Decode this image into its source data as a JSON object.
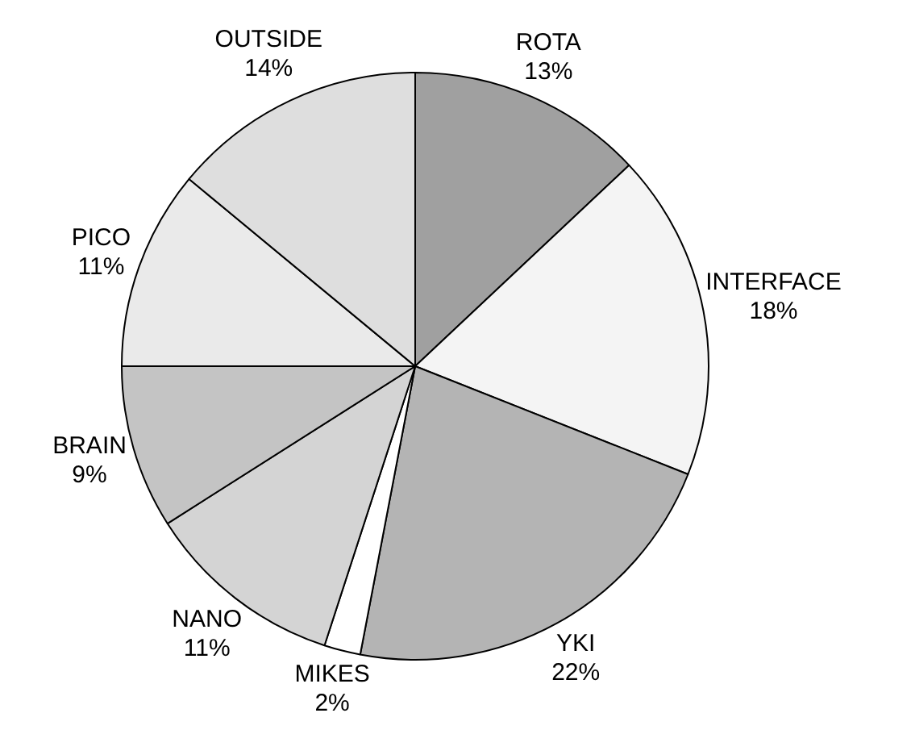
{
  "chart_data": {
    "type": "pie",
    "categories": [
      "ROTA",
      "INTERFACE",
      "YKI",
      "MIKES",
      "NANO",
      "BRAIN",
      "PICO",
      "OUTSIDE"
    ],
    "values": [
      13,
      18,
      22,
      2,
      11,
      9,
      11,
      14
    ],
    "value_labels": [
      "13%",
      "18%",
      "22%",
      "2%",
      "11%",
      "9%",
      "11%",
      "14%"
    ],
    "colors": [
      "#a0a0a0",
      "#f4f4f4",
      "#b4b4b4",
      "#ffffff",
      "#d4d4d4",
      "#c4c4c4",
      "#eaeaea",
      "#dedede"
    ],
    "legend": false
  }
}
